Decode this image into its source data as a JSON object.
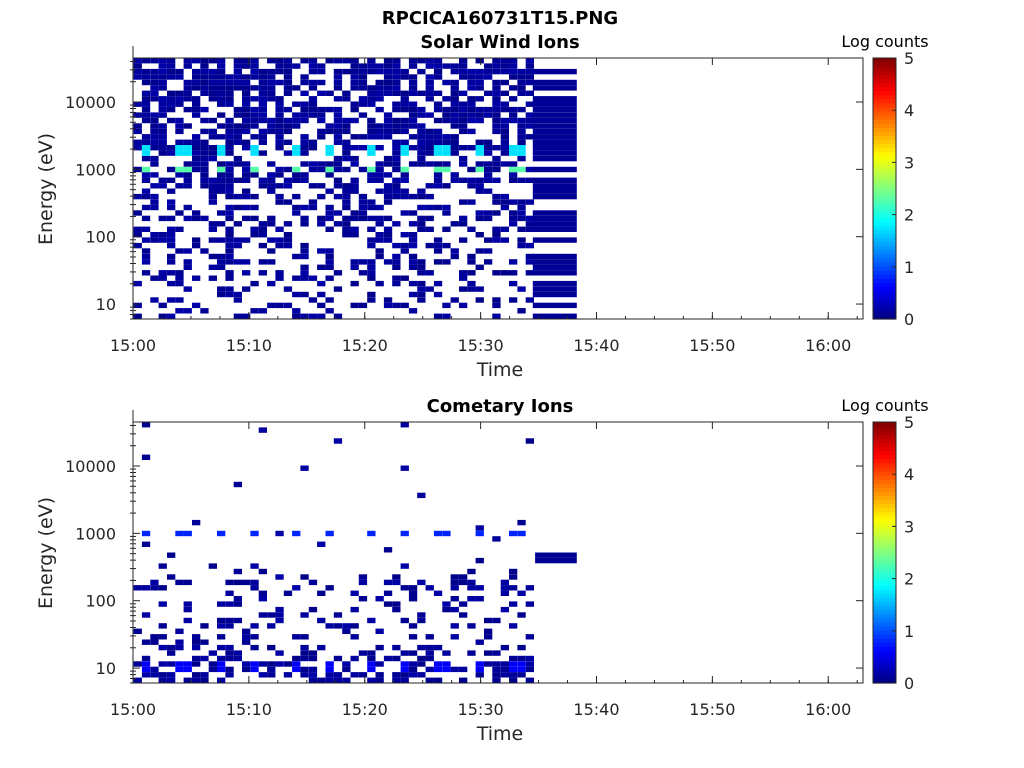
{
  "figure_title": "RPCICA160731T15.PNG",
  "chart_data": [
    {
      "type": "heatmap",
      "title": "Solar Wind Ions",
      "xlabel": "Time",
      "ylabel": "Energy (eV)",
      "x_ticks": [
        "15:00",
        "15:10",
        "15:20",
        "15:30",
        "15:40",
        "15:50",
        "16:00"
      ],
      "x_range_minutes": [
        0,
        63
      ],
      "y_ticks": [
        "10",
        "100",
        "1000",
        "10000"
      ],
      "y_tick_values": [
        10,
        100,
        1000,
        10000
      ],
      "y_scale": "log",
      "y_range": [
        6,
        45000
      ],
      "colorbar": {
        "label": "Log counts",
        "ticks": [
          "0",
          "1",
          "2",
          "3",
          "4",
          "5"
        ],
        "range": [
          0,
          5
        ],
        "colormap": "jet"
      },
      "data_extent_minutes": [
        0,
        38.3
      ],
      "peak_energies_eV": [
        1000,
        2000
      ],
      "peak_log_counts": 2.3,
      "peak_times_minutes": [
        1.2,
        4.4,
        7.5,
        10.7,
        13.9,
        17.1,
        20.4,
        23.5,
        26.8,
        29.9,
        33.2
      ],
      "background_log_counts": 0.1
    },
    {
      "type": "heatmap",
      "title": "Cometary Ions",
      "xlabel": "Time",
      "ylabel": "Energy (eV)",
      "x_ticks": [
        "15:00",
        "15:10",
        "15:20",
        "15:30",
        "15:40",
        "15:50",
        "16:00"
      ],
      "x_range_minutes": [
        0,
        63
      ],
      "y_ticks": [
        "10",
        "100",
        "1000",
        "10000"
      ],
      "y_tick_values": [
        10,
        100,
        1000,
        10000
      ],
      "y_scale": "log",
      "y_range": [
        6,
        45000
      ],
      "colorbar": {
        "label": "Log counts",
        "ticks": [
          "0",
          "1",
          "2",
          "3",
          "4",
          "5"
        ],
        "range": [
          0,
          5
        ],
        "colormap": "jet"
      },
      "data_extent_minutes": [
        0,
        38.3
      ],
      "peak_energies_eV": [
        1000,
        10
      ],
      "peak_log_counts": 0.8,
      "peak_times_minutes": [
        1.2,
        4.4,
        7.5,
        10.7,
        13.9,
        17.1,
        20.4,
        23.5,
        26.8,
        29.9,
        33.2
      ],
      "background_log_counts": 0.1
    }
  ]
}
